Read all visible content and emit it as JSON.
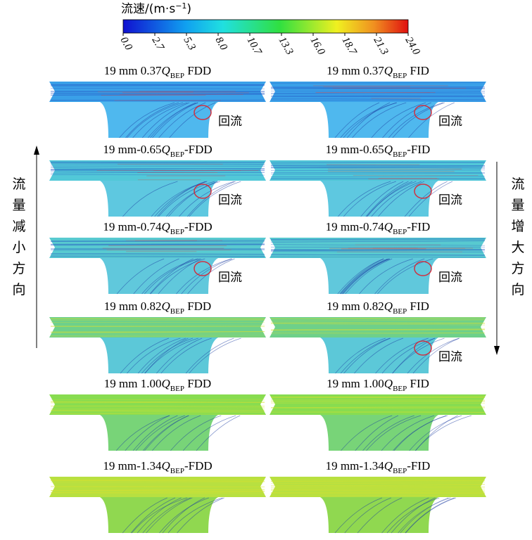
{
  "colorbar": {
    "title": "流速/(m·s",
    "sup": "−1",
    "close": ")",
    "ticks": [
      "0.0",
      "2.7",
      "5.3",
      "8.0",
      "10.7",
      "13.3",
      "16.0",
      "18.7",
      "21.3",
      "24.0"
    ]
  },
  "panels": [
    {
      "pre": "19 mm  0.37",
      "q": "Q",
      "sub": "BEP",
      "post": "  FDD",
      "note": "回流"
    },
    {
      "pre": "19 mm  0.37",
      "q": "Q",
      "sub": "BEP",
      "post": "  FID",
      "note": "回流"
    },
    {
      "pre": "19 mm-0.65",
      "q": "Q",
      "sub": "BEP",
      "post": "-FDD",
      "note": "回流"
    },
    {
      "pre": "19 mm-0.65",
      "q": "Q",
      "sub": "BEP",
      "post": "-FID",
      "note": "回流"
    },
    {
      "pre": "19 mm-0.74",
      "q": "Q",
      "sub": "BEP",
      "post": "-FDD",
      "note": "回流"
    },
    {
      "pre": "19 mm-0.74",
      "q": "Q",
      "sub": "BEP",
      "post": "-FID",
      "note": "回流"
    },
    {
      "pre": "19 mm  0.82",
      "q": "Q",
      "sub": "BEP",
      "post": "  FDD"
    },
    {
      "pre": "19 mm  0.82",
      "q": "Q",
      "sub": "BEP",
      "post": "  FID",
      "note": "回流"
    },
    {
      "pre": "19 mm  1.00",
      "q": "Q",
      "sub": "BEP",
      "post": "  FDD"
    },
    {
      "pre": "19 mm  1.00",
      "q": "Q",
      "sub": "BEP",
      "post": "  FID"
    },
    {
      "pre": "19 mm-1.34",
      "q": "Q",
      "sub": "BEP",
      "post": "-FDD"
    },
    {
      "pre": "19 mm-1.34",
      "q": "Q",
      "sub": "BEP",
      "post": "-FID"
    }
  ],
  "side_left": "流量减小方向",
  "side_right": "流量增大方向"
}
